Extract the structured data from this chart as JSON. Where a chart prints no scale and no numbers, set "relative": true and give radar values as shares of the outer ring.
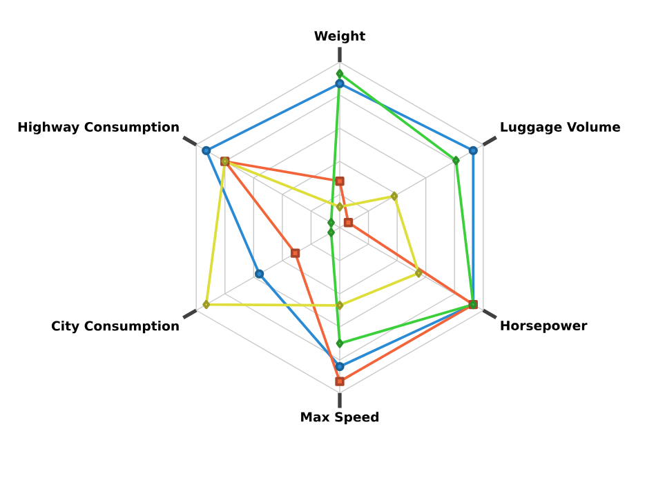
{
  "chart_data": {
    "type": "radar",
    "relative": true,
    "grid": true,
    "line_style": "solid",
    "categories": [
      "Weight",
      "Luggage Volume",
      "Horsepower",
      "Max Speed",
      "City Consumption",
      "Highway Consumption"
    ],
    "series": [
      {
        "color": "#2a8ad4",
        "marker": "circle",
        "values": [
          0.87,
          0.93,
          0.93,
          0.84,
          0.56,
          0.93
        ]
      },
      {
        "color": "#f2643a",
        "marker": "square",
        "values": [
          0.28,
          0.06,
          0.93,
          0.93,
          0.31,
          0.8
        ]
      },
      {
        "color": "#3ccf3c",
        "marker": "diamond",
        "values": [
          0.93,
          0.81,
          0.93,
          0.7,
          0.06,
          0.06
        ]
      },
      {
        "color": "#dede3a",
        "marker": "diamond",
        "values": [
          0.125,
          0.38,
          0.55,
          0.47,
          0.93,
          0.8
        ]
      }
    ]
  }
}
